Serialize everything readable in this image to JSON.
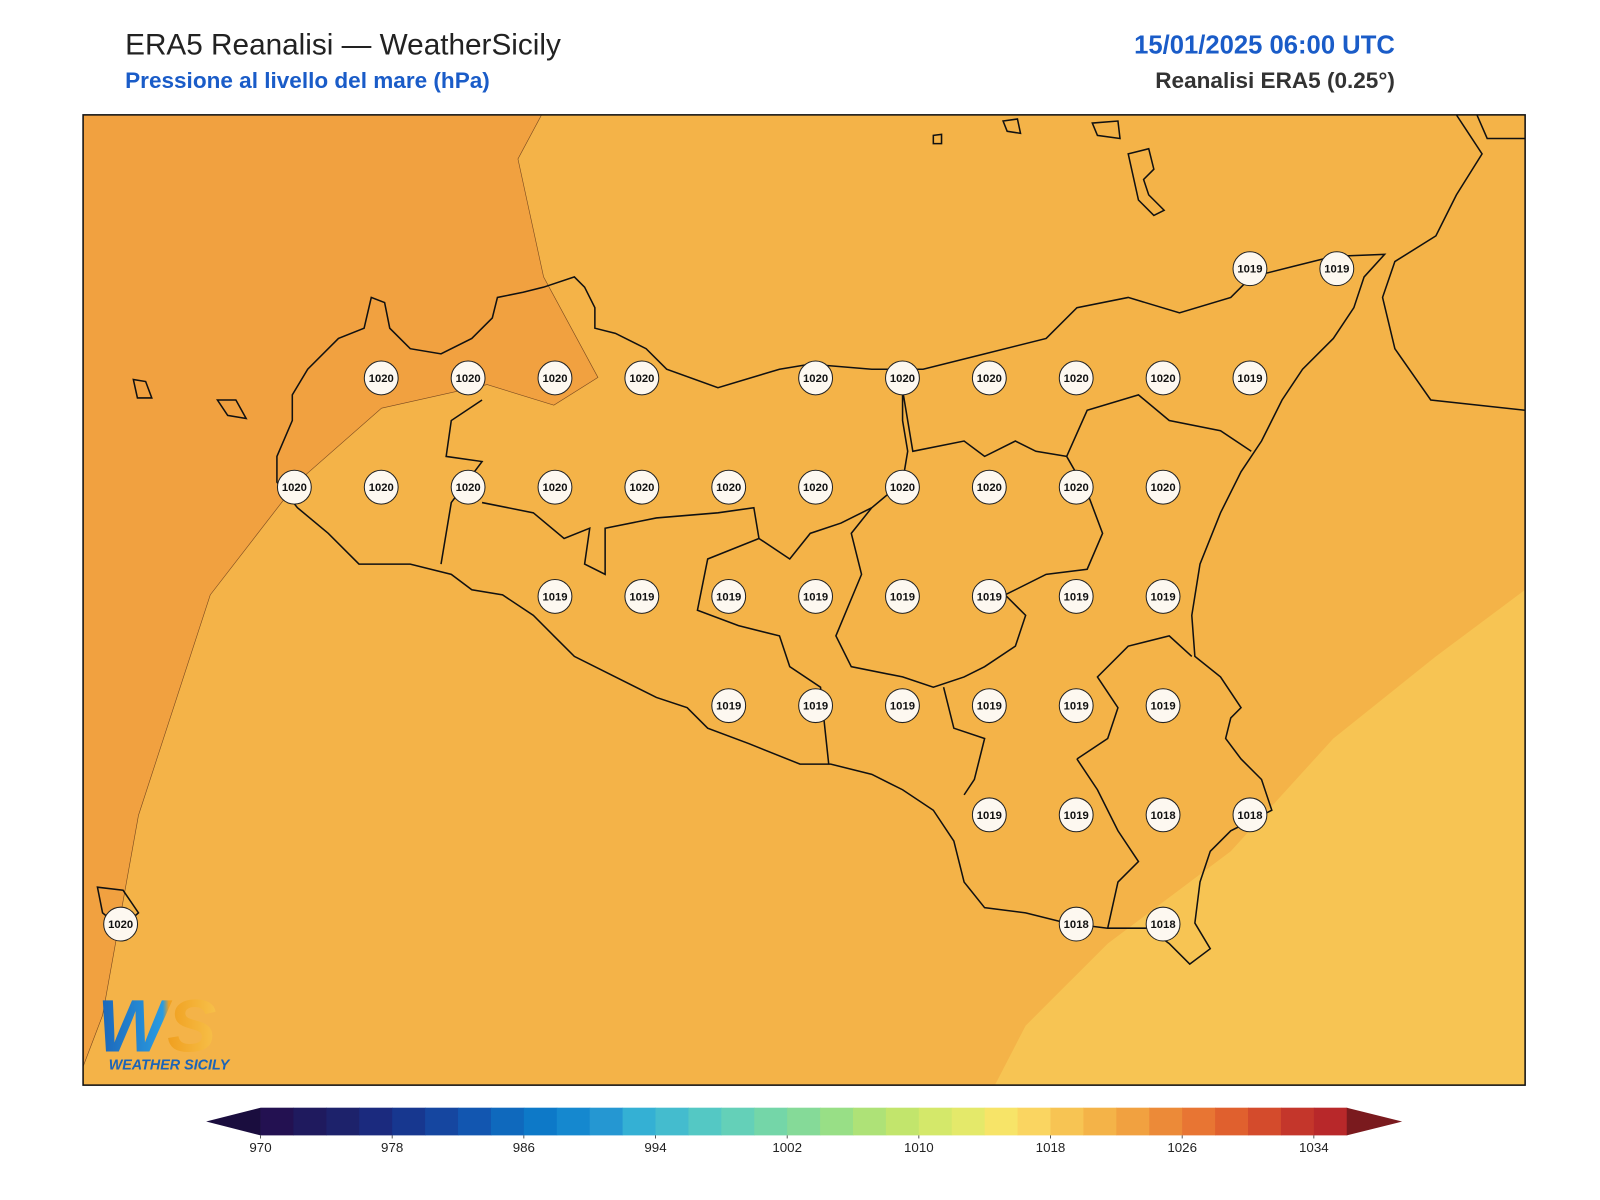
{
  "header": {
    "title": "ERA5 Reanalisi — WeatherSicily",
    "subtitle": "Pressione al livello del mare (hPa)",
    "datetime": "15/01/2025 06:00 UTC",
    "source": "Reanalisi ERA5 (0.25°)"
  },
  "stations": {
    "rows": [
      [
        null,
        null,
        null,
        null,
        null,
        null,
        null,
        null,
        null,
        null,
        null,
        null,
        null,
        1019,
        1019
      ],
      [
        null,
        null,
        null,
        1020,
        1020,
        1020,
        1020,
        null,
        1020,
        1020,
        1020,
        1020,
        1020,
        1019,
        null
      ],
      [
        null,
        null,
        1020,
        1020,
        1020,
        1020,
        1020,
        1020,
        1020,
        1020,
        1020,
        1020,
        1020,
        null,
        null
      ],
      [
        null,
        null,
        null,
        null,
        null,
        1019,
        1019,
        1019,
        1019,
        1019,
        1019,
        1019,
        1019,
        null,
        null
      ],
      [
        null,
        null,
        null,
        null,
        null,
        null,
        null,
        1019,
        1019,
        1019,
        1019,
        1019,
        1019,
        null,
        null
      ],
      [
        null,
        null,
        null,
        null,
        null,
        null,
        null,
        null,
        null,
        null,
        1019,
        1019,
        1018,
        1018,
        null
      ],
      [
        1020,
        null,
        null,
        null,
        null,
        null,
        null,
        null,
        null,
        null,
        null,
        1018,
        1018,
        null,
        null
      ]
    ]
  },
  "colorbar": {
    "ticks": [
      970,
      978,
      986,
      994,
      1002,
      1010,
      1018,
      1026,
      1034
    ],
    "colors": [
      "#231151",
      "#1f1a5e",
      "#1d226b",
      "#1b2a7e",
      "#17378f",
      "#1546a0",
      "#1256b0",
      "#0f69bd",
      "#0d79c8",
      "#1588cf",
      "#2597d2",
      "#34b0d4",
      "#44bcce",
      "#54c8c4",
      "#64d0b8",
      "#74d6a8",
      "#85da98",
      "#98df86",
      "#aee277",
      "#c2e56c",
      "#d4e86a",
      "#e4e96a",
      "#f7e468",
      "#fad561",
      "#f7c453",
      "#f4b348",
      "#f1a140",
      "#ec8a38",
      "#e87533",
      "#e0602e",
      "#d44b2c",
      "#c4362b",
      "#b8282a"
    ],
    "under_color": "#1a0d3e",
    "over_color": "#7a1a1e"
  },
  "logo": {
    "mark": "WS",
    "text": "WEATHER SICILY"
  }
}
